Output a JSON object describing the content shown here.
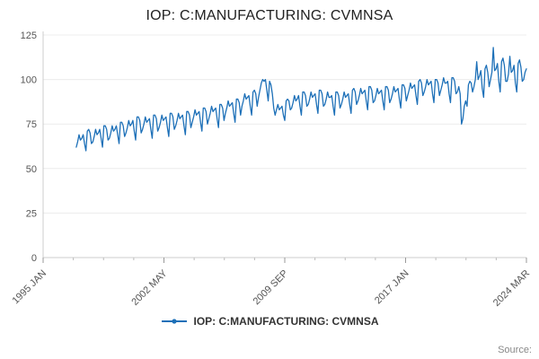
{
  "title": "IOP: C:MANUFACTURING: CVMNSA",
  "legend": {
    "label": "IOP: C:MANUFACTURING: CVMNSA"
  },
  "source_label": "Source:",
  "chart_data": {
    "type": "line",
    "title": "IOP: C:MANUFACTURING: CVMNSA",
    "series_name": "IOP: C:MANUFACTURING: CVMNSA",
    "color": "#1d70b8",
    "frequency": "monthly",
    "data_start": "1997 JAN",
    "x_axis": {
      "domain_start": "1995 JAN",
      "domain_end": "2024 MAR",
      "domain_total_months": 350,
      "data_start_offset_months": 24,
      "tick_labels": [
        "1995 JAN",
        "2002 MAY",
        "2009 SEP",
        "2017 JAN",
        "2024 MAR"
      ]
    },
    "y_axis": {
      "min": 0,
      "max": 125,
      "ticks": [
        0,
        25,
        50,
        75,
        100,
        125
      ]
    },
    "grid": "horizontal-light",
    "legend_position": "bottom-center",
    "values": [
      62,
      65,
      69,
      66,
      67,
      69,
      64,
      60,
      71,
      72,
      70,
      64,
      65,
      68,
      72,
      69,
      70,
      72,
      67,
      62,
      74,
      74,
      72,
      66,
      67,
      70,
      74,
      71,
      72,
      74,
      69,
      64,
      76,
      76,
      74,
      68,
      70,
      73,
      77,
      74,
      75,
      77,
      71,
      66,
      79,
      79,
      77,
      70,
      72,
      75,
      79,
      76,
      77,
      78,
      72,
      67,
      80,
      80,
      78,
      71,
      73,
      76,
      80,
      77,
      78,
      79,
      73,
      68,
      81,
      81,
      79,
      72,
      74,
      77,
      81,
      78,
      79,
      80,
      74,
      69,
      82,
      82,
      80,
      73,
      76,
      79,
      83,
      80,
      81,
      82,
      76,
      71,
      84,
      84,
      82,
      75,
      78,
      81,
      85,
      82,
      83,
      84,
      78,
      73,
      86,
      86,
      84,
      77,
      81,
      84,
      88,
      85,
      86,
      87,
      81,
      76,
      89,
      89,
      87,
      80,
      85,
      88,
      92,
      89,
      90,
      91,
      85,
      80,
      93,
      94,
      92,
      85,
      90,
      94,
      98,
      100,
      99,
      100,
      94,
      88,
      99,
      97,
      92,
      84,
      80,
      83,
      86,
      83,
      84,
      85,
      80,
      77,
      88,
      89,
      88,
      83,
      84,
      87,
      91,
      88,
      89,
      91,
      85,
      80,
      93,
      93,
      91,
      85,
      86,
      89,
      93,
      90,
      91,
      92,
      86,
      81,
      94,
      94,
      92,
      85,
      86,
      89,
      93,
      90,
      90,
      91,
      85,
      80,
      93,
      93,
      91,
      84,
      86,
      89,
      93,
      90,
      91,
      92,
      86,
      81,
      94,
      95,
      93,
      86,
      88,
      91,
      95,
      92,
      93,
      94,
      88,
      83,
      96,
      96,
      94,
      87,
      88,
      91,
      95,
      92,
      93,
      94,
      88,
      83,
      96,
      96,
      94,
      87,
      89,
      92,
      96,
      93,
      94,
      95,
      89,
      84,
      97,
      97,
      95,
      88,
      91,
      94,
      98,
      95,
      96,
      97,
      91,
      86,
      99,
      100,
      98,
      91,
      93,
      96,
      100,
      97,
      98,
      99,
      92,
      87,
      100,
      100,
      98,
      91,
      94,
      97,
      101,
      98,
      98,
      99,
      92,
      87,
      101,
      101,
      99,
      92,
      93,
      96,
      92,
      75,
      78,
      85,
      88,
      85,
      97,
      99,
      98,
      93,
      96,
      100,
      110,
      100,
      102,
      105,
      95,
      90,
      106,
      108,
      104,
      96,
      100,
      104,
      118,
      105,
      106,
      109,
      99,
      93,
      110,
      112,
      108,
      99,
      99,
      103,
      113,
      104,
      105,
      108,
      98,
      93,
      109,
      111,
      107,
      99,
      100,
      104,
      106
    ]
  }
}
